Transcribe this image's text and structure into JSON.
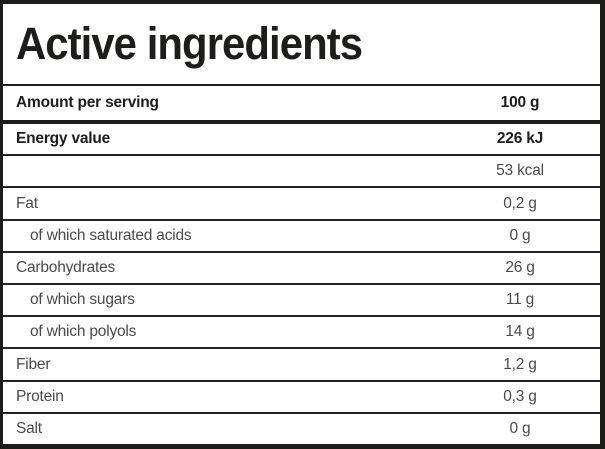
{
  "title": "Active ingredients",
  "colors": {
    "border": "#1c1c1b",
    "text_bold": "#1d1d1b",
    "text_regular": "#4a4a49",
    "background": "#ffffff"
  },
  "table": {
    "header": {
      "label": "Amount per serving",
      "value": "100 g"
    },
    "rows": [
      {
        "label": "Energy value",
        "value": "226 kJ"
      },
      {
        "label": "",
        "value": "53 kcal"
      },
      {
        "label": "Fat",
        "value": "0,2 g"
      },
      {
        "label": "of which saturated acids",
        "value": "0 g"
      },
      {
        "label": "Carbohydrates",
        "value": "26 g"
      },
      {
        "label": "of which sugars",
        "value": "11 g"
      },
      {
        "label": "of which polyols",
        "value": "14 g"
      },
      {
        "label": "Fiber",
        "value": "1,2 g"
      },
      {
        "label": "Protein",
        "value": "0,3 g"
      },
      {
        "label": "Salt",
        "value": "0 g"
      }
    ]
  }
}
